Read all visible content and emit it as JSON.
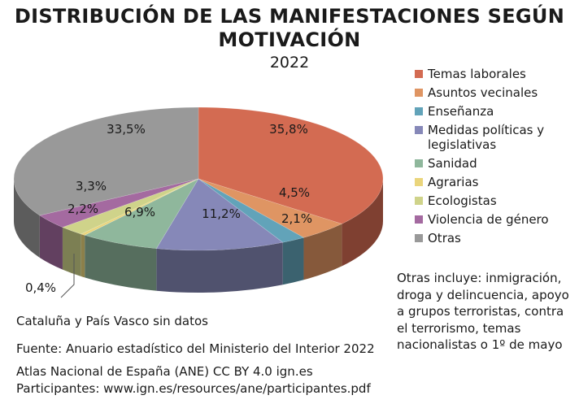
{
  "title_line1": "DISTRIBUCIÓN DE LAS MANIFESTACIONES SEGÚN",
  "title_line2": "MOTIVACIÓN",
  "year": "2022",
  "chart_data": {
    "type": "pie",
    "title": "DISTRIBUCIÓN DE LAS MANIFESTACIONES SEGÚN MOTIVACIÓN",
    "subtitle": "2022",
    "unit": "%",
    "legend_position": "right",
    "slices": [
      {
        "name": "Temas laborales",
        "value": 35.8,
        "label": "35,8%",
        "color": "#d36b52"
      },
      {
        "name": "Asuntos vecinales",
        "value": 4.5,
        "label": "4,5%",
        "color": "#df9563"
      },
      {
        "name": "Enseñanza",
        "value": 2.1,
        "label": "2,1%",
        "color": "#62a3b9"
      },
      {
        "name": "Medidas políticas y legislativas",
        "value": 11.2,
        "label": "11,2%",
        "color": "#8688b8"
      },
      {
        "name": "Sanidad",
        "value": 6.9,
        "label": "6,9%",
        "color": "#8fb79c"
      },
      {
        "name": "Agrarias",
        "value": 0.4,
        "label": "0,4%",
        "color": "#ead57c"
      },
      {
        "name": "Ecologistas",
        "value": 2.2,
        "label": "2,2%",
        "color": "#cfd38a"
      },
      {
        "name": "Violencia de género",
        "value": 3.3,
        "label": "3,3%",
        "color": "#a46aa0"
      },
      {
        "name": "Otras",
        "value": 33.5,
        "label": "33,5%",
        "color": "#999999"
      }
    ]
  },
  "legend": [
    {
      "label": "Temas laborales",
      "color": "#d36b52"
    },
    {
      "label": "Asuntos vecinales",
      "color": "#df9563"
    },
    {
      "label": "Enseñanza",
      "color": "#62a3b9"
    },
    {
      "label": "Medidas políticas y legislativas",
      "color": "#8688b8"
    },
    {
      "label": "Sanidad",
      "color": "#8fb79c"
    },
    {
      "label": "Agrarias",
      "color": "#ead57c"
    },
    {
      "label": "Ecologistas",
      "color": "#cfd38a"
    },
    {
      "label": "Violencia de género",
      "color": "#a46aa0"
    },
    {
      "label": "Otras",
      "color": "#999999"
    }
  ],
  "note": "Otras incluye: inmigración, droga y delincuencia, apoyo a grupos terroristas, contra el terrorismo, temas nacionalistas o 1º de mayo",
  "no_data": "Cataluña y País Vasco sin datos",
  "source": "Fuente: Anuario estadístico del Ministerio del Interior 2022",
  "credit": "Atlas Nacional de España (ANE) CC BY 4.0 ign.es",
  "participants": "Participantes: www.ign.es/resources/ane/participantes.pdf"
}
